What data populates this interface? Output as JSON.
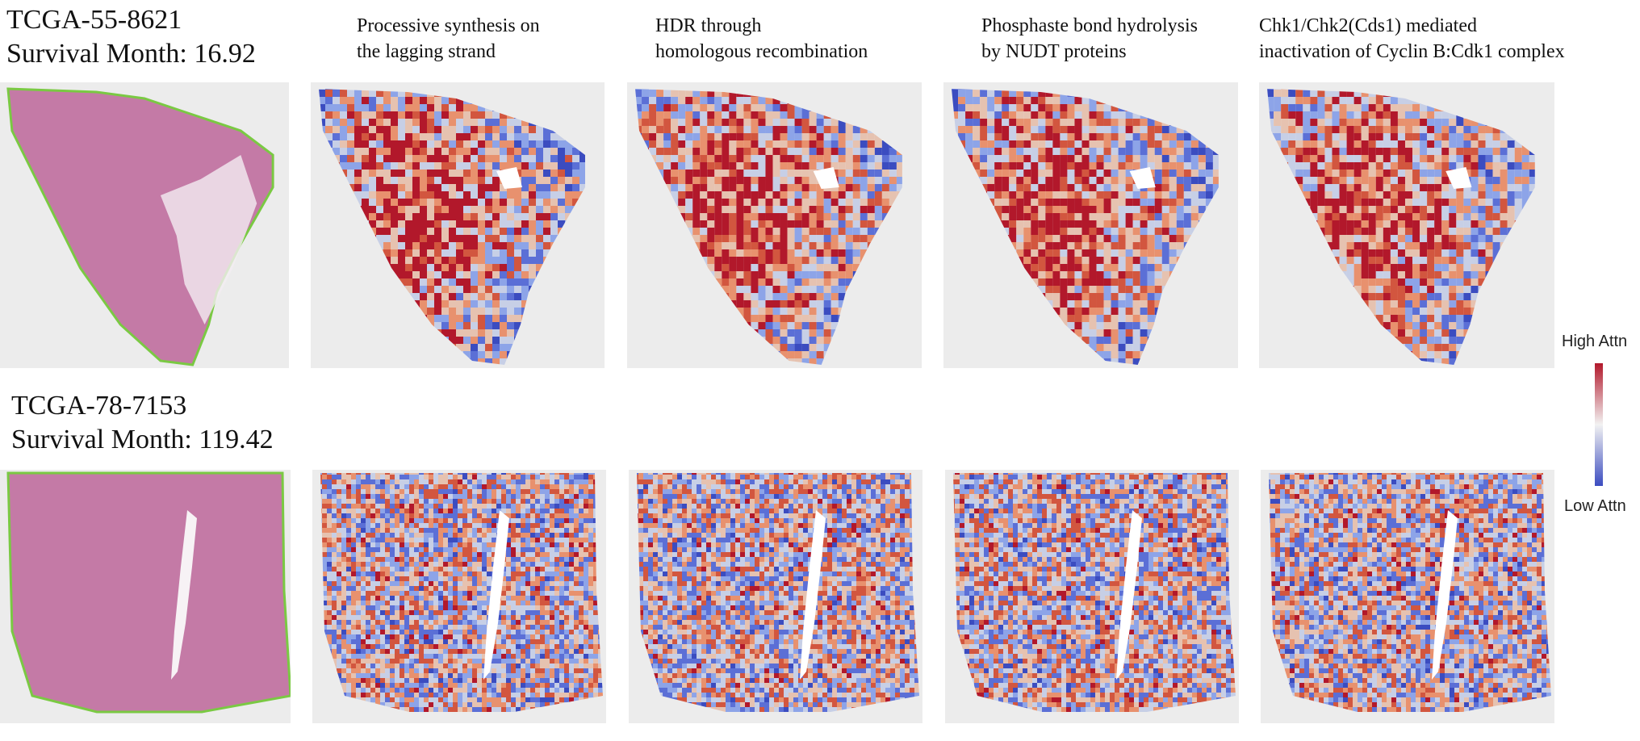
{
  "rows": [
    {
      "case_id": "TCGA-55-8621",
      "survival": "Survival Month: 16.92"
    },
    {
      "case_id": "TCGA-78-7153",
      "survival": "Survival Month: 119.42"
    }
  ],
  "columns": [
    {
      "line1": "Processive synthesis on",
      "line2": "the lagging strand"
    },
    {
      "line1": "HDR through",
      "line2": "homologous recombination"
    },
    {
      "line1": "Phosphaste bond hydrolysis",
      "line2": "by NUDT proteins"
    },
    {
      "line1": "Chk1/Chk2(Cds1) mediated",
      "line2": "inactivation of Cyclin B:Cdk1 complex"
    }
  ],
  "legend": {
    "high": "High Attn",
    "low": "Low Attn",
    "high_color": "#b2182b",
    "mid_color": "#f2f2f2",
    "low_color": "#3b4cc0"
  },
  "colors": {
    "he_stain": "#c47aa6",
    "tissue_outline": "#7ac943",
    "slide_background": "#ececec"
  }
}
